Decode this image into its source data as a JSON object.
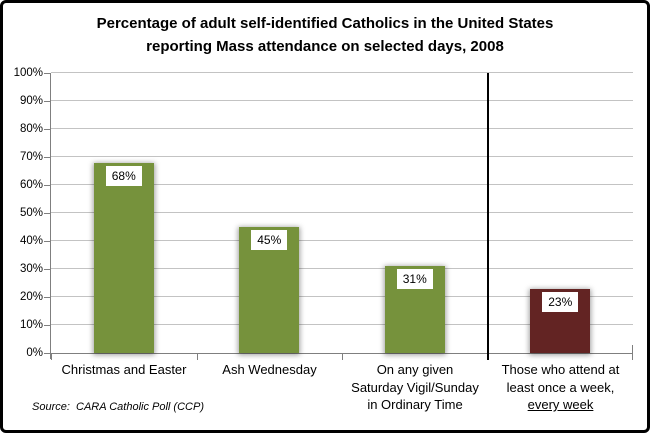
{
  "header": {
    "title_line1": "Percentage of adult self-identified Catholics in the United States",
    "title_line2": "reporting Mass attendance on selected days, 2008"
  },
  "chart_data": {
    "type": "bar",
    "title": "Percentage of adult self-identified Catholics in the United States reporting Mass attendance on selected days, 2008",
    "categories": [
      "Christmas and Easter",
      "Ash Wednesday",
      "On any given Saturday Vigil/Sunday in Ordinary Time",
      "Those who attend at least once a week, every week"
    ],
    "category_lines": [
      [
        {
          "text": "Christmas and Easter"
        }
      ],
      [
        {
          "text": "Ash Wednesday"
        }
      ],
      [
        {
          "text": "On any given"
        },
        {
          "text": "Saturday Vigil/Sunday"
        },
        {
          "text": "in Ordinary Time"
        }
      ],
      [
        {
          "text": "Those who attend at"
        },
        {
          "text": "least once a week,"
        },
        {
          "text": "every week",
          "underline": true
        }
      ]
    ],
    "values": [
      68,
      45,
      31,
      23
    ],
    "data_labels": [
      "68%",
      "45%",
      "31%",
      "23%"
    ],
    "bar_colors": [
      "#76923C",
      "#76923C",
      "#76923C",
      "#632423"
    ],
    "xlabel": "",
    "ylabel": "",
    "ylim": [
      0,
      100
    ],
    "ytick_labels": [
      "0%",
      "10%",
      "20%",
      "30%",
      "40%",
      "50%",
      "60%",
      "70%",
      "80%",
      "90%",
      "100%"
    ],
    "grid": true,
    "legend": "none",
    "separator_after_category": 3,
    "colors": {
      "green_bar": "#76923C",
      "maroon_bar": "#632423",
      "gridline": "#C3C3C3",
      "axis": "#7F7F7F",
      "separator": "#000000"
    }
  },
  "footer": {
    "source": "Source:  CARA Catholic Poll (CCP)"
  }
}
